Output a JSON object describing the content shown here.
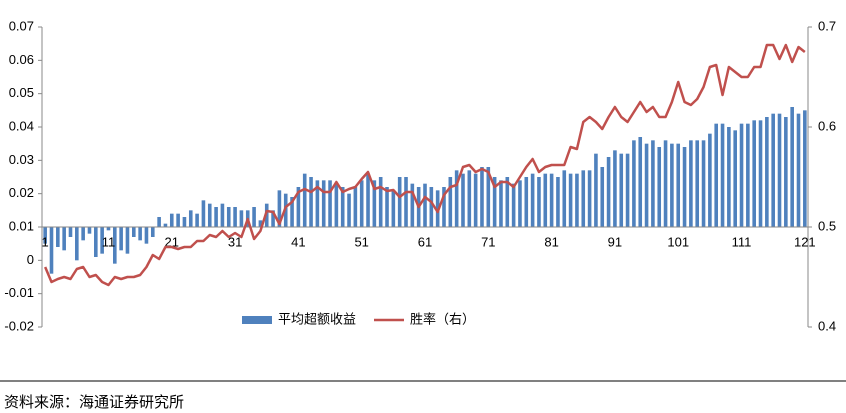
{
  "chart_data": {
    "type": "bar_line",
    "categories": [
      1,
      null,
      null,
      null,
      null,
      null,
      null,
      null,
      null,
      null,
      11,
      null,
      null,
      null,
      null,
      null,
      null,
      null,
      null,
      null,
      21,
      null,
      null,
      null,
      null,
      null,
      null,
      null,
      null,
      null,
      31,
      null,
      null,
      null,
      null,
      null,
      null,
      null,
      null,
      null,
      41,
      null,
      null,
      null,
      null,
      null,
      null,
      null,
      null,
      null,
      51,
      null,
      null,
      null,
      null,
      null,
      null,
      null,
      null,
      null,
      61,
      null,
      null,
      null,
      null,
      null,
      null,
      null,
      null,
      null,
      71,
      null,
      null,
      null,
      null,
      null,
      null,
      null,
      null,
      null,
      81,
      null,
      null,
      null,
      null,
      null,
      null,
      null,
      null,
      null,
      91,
      null,
      null,
      null,
      null,
      null,
      null,
      null,
      null,
      null,
      101,
      null,
      null,
      null,
      null,
      null,
      null,
      null,
      null,
      null,
      111,
      null,
      null,
      null,
      null,
      null,
      null,
      null,
      null,
      null,
      121
    ],
    "series": [
      {
        "name": "平均超额收益",
        "color": "#4f81bd",
        "kind": "bar",
        "values": [
          0.005,
          -0.004,
          0.004,
          0.003,
          0.007,
          0.0,
          0.006,
          0.008,
          0.001,
          0.002,
          0.009,
          -0.001,
          0.003,
          0.002,
          0.007,
          0.006,
          0.005,
          0.007,
          0.013,
          0.011,
          0.014,
          0.014,
          0.013,
          0.015,
          0.014,
          0.018,
          0.017,
          0.016,
          0.017,
          0.016,
          0.016,
          0.015,
          0.015,
          0.016,
          0.012,
          0.017,
          0.015,
          0.021,
          0.02,
          0.019,
          0.022,
          0.026,
          0.025,
          0.024,
          0.024,
          0.024,
          0.023,
          0.022,
          0.02,
          0.022,
          0.024,
          0.026,
          0.024,
          0.025,
          0.022,
          0.021,
          0.025,
          0.025,
          0.023,
          0.022,
          0.023,
          0.022,
          0.021,
          0.022,
          0.025,
          0.027,
          0.026,
          0.027,
          0.026,
          0.028,
          0.028,
          0.025,
          0.024,
          0.025,
          0.023,
          0.024,
          0.025,
          0.026,
          0.025,
          0.026,
          0.026,
          0.025,
          0.027,
          0.026,
          0.026,
          0.027,
          0.027,
          0.032,
          0.028,
          0.031,
          0.033,
          0.032,
          0.032,
          0.036,
          0.037,
          0.035,
          0.036,
          0.034,
          0.036,
          0.035,
          0.035,
          0.034,
          0.036,
          0.036,
          0.036,
          0.038,
          0.041,
          0.041,
          0.04,
          0.039,
          0.041,
          0.041,
          0.042,
          0.042,
          0.043,
          0.044,
          0.044,
          0.043,
          0.046,
          0.044,
          0.045
        ]
      },
      {
        "name": "胜率（右）",
        "color": "#c0504d",
        "kind": "line",
        "axis": "y2",
        "values": [
          0.46,
          0.445,
          0.448,
          0.45,
          0.448,
          0.458,
          0.46,
          0.45,
          0.452,
          0.445,
          0.442,
          0.45,
          0.448,
          0.45,
          0.45,
          0.452,
          0.46,
          0.472,
          0.468,
          0.48,
          0.48,
          0.478,
          0.48,
          0.48,
          0.486,
          0.486,
          0.492,
          0.49,
          0.496,
          0.49,
          0.494,
          0.49,
          0.508,
          0.488,
          0.496,
          0.516,
          0.515,
          0.503,
          0.52,
          0.525,
          0.535,
          0.538,
          0.535,
          0.54,
          0.535,
          0.535,
          0.545,
          0.535,
          0.538,
          0.54,
          0.548,
          0.555,
          0.538,
          0.54,
          0.536,
          0.537,
          0.53,
          0.535,
          0.535,
          0.52,
          0.53,
          0.525,
          0.515,
          0.532,
          0.54,
          0.542,
          0.56,
          0.562,
          0.555,
          0.558,
          0.555,
          0.54,
          0.545,
          0.545,
          0.54,
          0.55,
          0.56,
          0.568,
          0.555,
          0.56,
          0.562,
          0.562,
          0.562,
          0.58,
          0.578,
          0.605,
          0.61,
          0.605,
          0.598,
          0.61,
          0.62,
          0.61,
          0.605,
          0.615,
          0.625,
          0.615,
          0.62,
          0.61,
          0.61,
          0.625,
          0.645,
          0.625,
          0.622,
          0.628,
          0.64,
          0.66,
          0.662,
          0.632,
          0.66,
          0.655,
          0.65,
          0.65,
          0.66,
          0.66,
          0.682,
          0.682,
          0.668,
          0.682,
          0.665,
          0.68,
          0.675
        ]
      }
    ],
    "ylim": [
      -0.02,
      0.07
    ],
    "yticks": [
      -0.02,
      -0.01,
      0,
      0.01,
      0.02,
      0.03,
      0.04,
      0.05,
      0.06,
      0.07
    ],
    "y2lim": [
      0.4,
      0.7
    ],
    "y2ticks": [
      0.4,
      0.5,
      0.6,
      0.7
    ],
    "x_axis_crosses": 0.01,
    "legend": "bottom",
    "source": "资料来源：海通证券研究所"
  }
}
